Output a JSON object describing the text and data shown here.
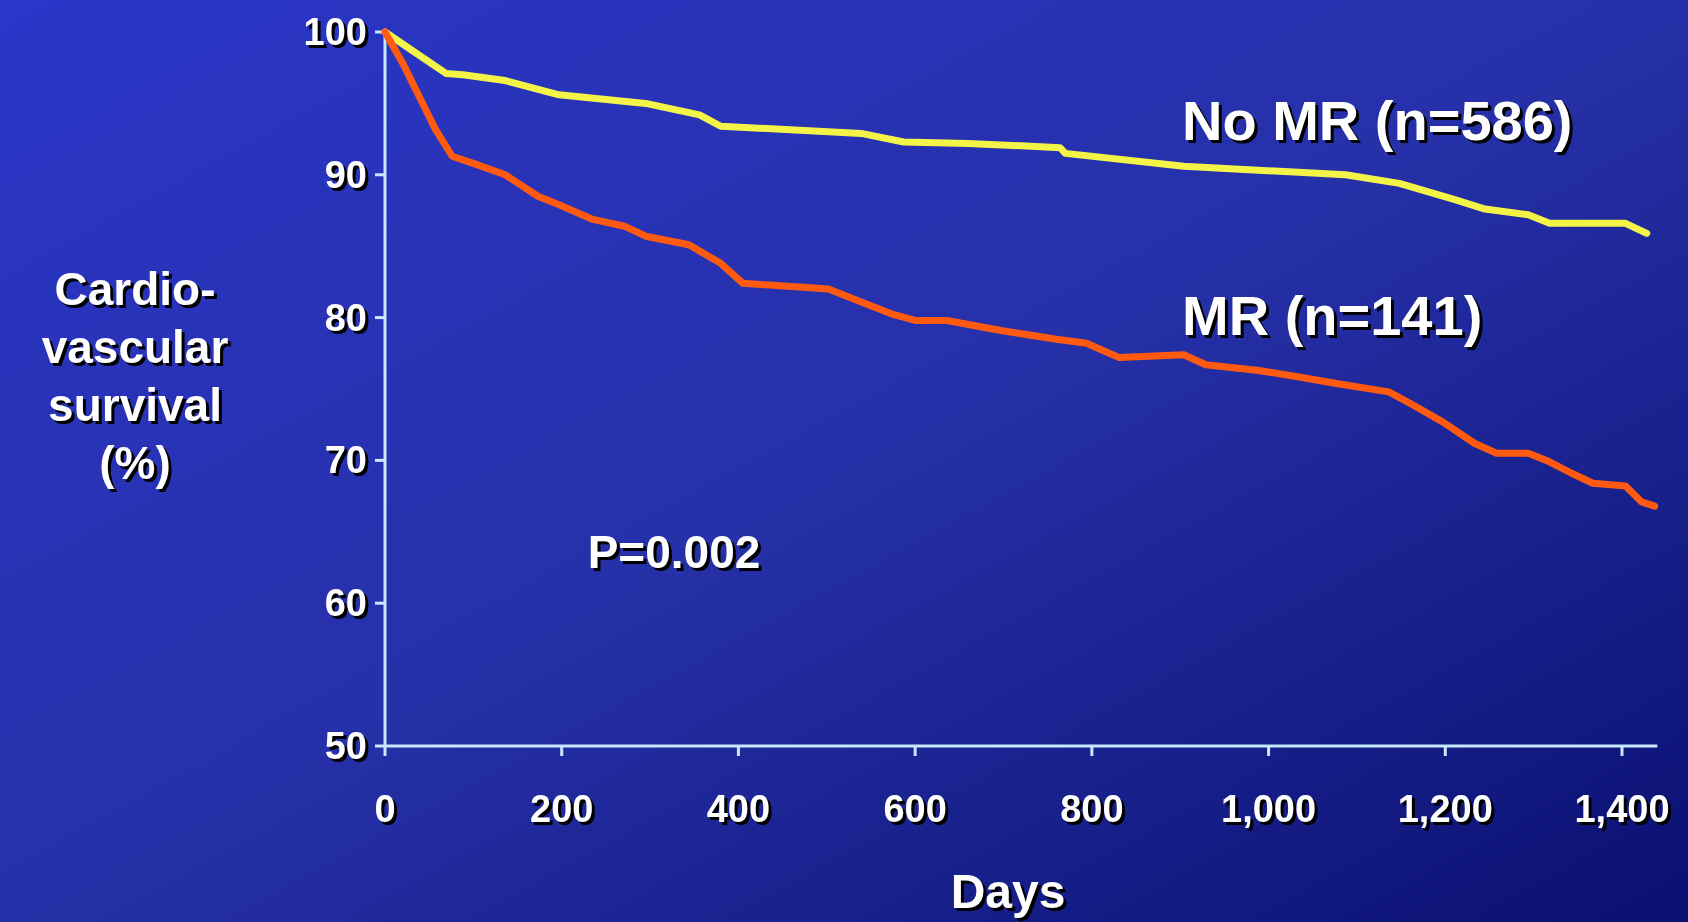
{
  "chart_data": {
    "type": "line",
    "xlabel": "Days",
    "ylabel": "Cardio-vascular survival (%)",
    "xlim": [
      0,
      1440
    ],
    "xticks": [
      0,
      200,
      400,
      600,
      800,
      {
        "value": 1000,
        "label": "1,000"
      },
      {
        "value": 1200,
        "label": "1,200"
      },
      {
        "value": 1400,
        "label": "1,400"
      }
    ],
    "ylim": [
      50,
      100
    ],
    "yticks": [
      50,
      60,
      70,
      80,
      90,
      100
    ],
    "grid": false,
    "marker": "none",
    "line_style": "solid",
    "annotations": [
      "P=0.002"
    ],
    "series": [
      {
        "name": "No MR (n=586)",
        "color": "#f4f448",
        "x": [
          0,
          69,
          88,
          136,
          197,
          295,
          356,
          380,
          539,
          587,
          660,
          764,
          770,
          904,
          1087,
          1148,
          1209,
          1245,
          1294,
          1318,
          1404,
          1428
        ],
        "values": [
          100,
          97.1,
          97,
          96.6,
          95.6,
          95,
          94.2,
          93.4,
          92.9,
          92.3,
          92.2,
          91.9,
          91.5,
          90.6,
          90,
          89.4,
          88.3,
          87.6,
          87.2,
          86.6,
          86.6,
          85.9
        ]
      },
      {
        "name": "MR (n=141)",
        "color": "#ff5a10",
        "x": [
          0,
          21,
          45,
          57,
          76,
          100,
          136,
          173,
          197,
          234,
          271,
          295,
          344,
          380,
          405,
          502,
          539,
          576,
          600,
          636,
          697,
          758,
          794,
          831,
          904,
          929,
          989,
          1038,
          1075,
          1136,
          1160,
          1197,
          1233,
          1258,
          1294,
          1318,
          1343,
          1367,
          1404,
          1422,
          1437
        ],
        "values": [
          100,
          97.7,
          94.7,
          93.2,
          91.3,
          90.8,
          90,
          88.5,
          87.9,
          86.9,
          86.4,
          85.7,
          85.1,
          83.8,
          82.4,
          82,
          81.1,
          80.2,
          79.8,
          79.8,
          79.1,
          78.5,
          78.2,
          77.2,
          77.4,
          76.7,
          76.3,
          75.8,
          75.4,
          74.8,
          74,
          72.7,
          71.2,
          70.5,
          70.5,
          69.9,
          69.1,
          68.4,
          68.2,
          67.1,
          66.8
        ]
      }
    ]
  }
}
